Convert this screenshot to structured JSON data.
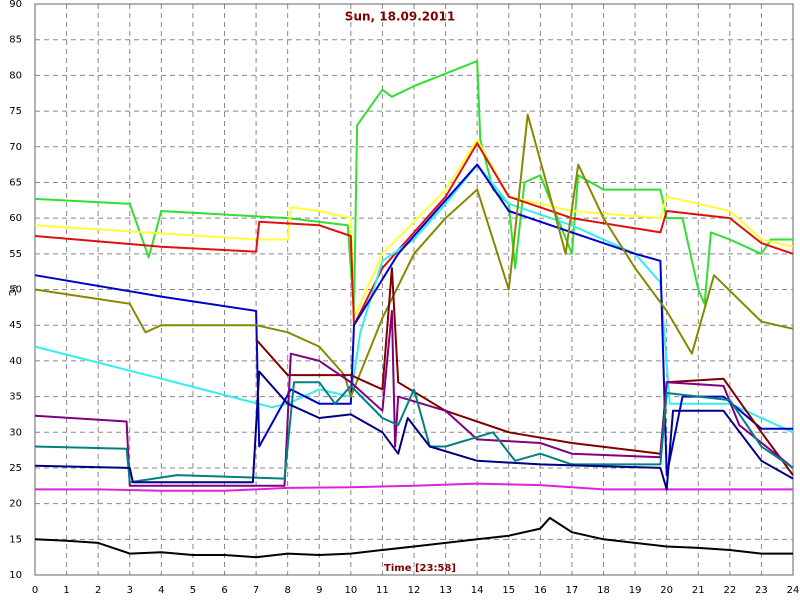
{
  "chart_data": {
    "type": "line",
    "title": "Sun, 18.09.2011",
    "xlabel": "Time [23:58]",
    "ylabel": "°C",
    "xlim": [
      0,
      24
    ],
    "ylim": [
      10,
      90
    ],
    "xticks": [
      0,
      1,
      2,
      3,
      4,
      5,
      6,
      7,
      8,
      9,
      10,
      11,
      12,
      13,
      14,
      15,
      16,
      17,
      18,
      19,
      20,
      21,
      22,
      23,
      24
    ],
    "yticks": [
      10,
      15,
      20,
      25,
      30,
      35,
      40,
      45,
      50,
      55,
      60,
      65,
      70,
      75,
      80,
      85,
      90
    ],
    "grid": true,
    "series": [
      {
        "color": "#000000",
        "x": [
          0,
          1,
          2,
          3,
          4,
          5,
          6,
          7,
          8,
          9,
          10,
          11,
          12,
          13,
          14,
          15,
          16,
          16.3,
          17,
          18,
          19,
          20,
          21,
          22,
          23,
          24
        ],
        "values": [
          15,
          14.8,
          14.5,
          13,
          13.2,
          12.8,
          12.8,
          12.5,
          13,
          12.8,
          13,
          13.5,
          14,
          14.5,
          15,
          15.5,
          16.5,
          18,
          16,
          15,
          14.5,
          14,
          13.8,
          13.5,
          13,
          13
        ]
      },
      {
        "color": "#dd22dd",
        "x": [
          0,
          2,
          4,
          6,
          8,
          10,
          12,
          14,
          16,
          18,
          20,
          22,
          24
        ],
        "values": [
          22,
          22,
          21.8,
          21.8,
          22.2,
          22.3,
          22.5,
          22.8,
          22.6,
          22,
          22,
          22,
          22
        ]
      },
      {
        "color": "#33dd33",
        "x": [
          0,
          3,
          3.6,
          4,
          8,
          9.9,
          10.1,
          10.2,
          11,
          11.3,
          12,
          14,
          14.1,
          14.5,
          15,
          15.2,
          15.5,
          16,
          17,
          17.2,
          18,
          19.8,
          20,
          20.5,
          21,
          21.2,
          21.4,
          22,
          23,
          23.3,
          24
        ],
        "values": [
          62.7,
          62,
          54.5,
          61,
          60,
          59,
          47,
          73,
          78,
          77,
          78.5,
          82,
          71,
          64,
          62,
          53,
          65,
          66,
          55,
          66,
          64,
          64,
          60,
          60,
          50,
          48,
          58,
          57,
          55,
          57,
          57
        ]
      },
      {
        "color": "#ffff33",
        "x": [
          0,
          7,
          8,
          8.1,
          9,
          10,
          10.1,
          11,
          13,
          14,
          15,
          17,
          19.8,
          20,
          22,
          23,
          24
        ],
        "values": [
          59,
          57,
          57,
          61.5,
          61,
          60,
          46,
          55,
          64,
          71,
          63,
          61,
          60,
          63,
          61,
          57,
          56
        ]
      },
      {
        "color": "#dd1111",
        "x": [
          0,
          4,
          7,
          7.1,
          9,
          10,
          10.1,
          11,
          12,
          13,
          14,
          15,
          17,
          19.8,
          20,
          22,
          23,
          24
        ],
        "values": [
          57.5,
          56,
          55.3,
          59.5,
          59,
          57.5,
          45,
          53,
          58,
          63,
          70.5,
          63,
          60,
          58,
          61,
          60,
          56.5,
          55
        ]
      },
      {
        "color": "#33eeee",
        "x": [
          0,
          4,
          7.5,
          8,
          9,
          10,
          10.3,
          11,
          12,
          13,
          14,
          15,
          17,
          19,
          19.8,
          20.1,
          21.5,
          22,
          23,
          24
        ],
        "values": [
          42,
          37.5,
          33.5,
          34,
          36,
          35,
          44,
          54,
          57,
          62,
          67.5,
          62,
          59,
          55,
          51,
          34,
          34,
          34,
          32,
          30
        ]
      },
      {
        "color": "#0000cc",
        "x": [
          0,
          4,
          7,
          7.1,
          8.1,
          9,
          10,
          10.1,
          11.5,
          12.5,
          14,
          15,
          17,
          19,
          19.8,
          20,
          20.5,
          21.8,
          23,
          24
        ],
        "values": [
          52,
          49,
          47,
          28,
          36,
          34,
          34,
          45,
          55,
          60,
          67.5,
          61,
          58,
          55,
          54,
          24,
          35,
          35,
          30.5,
          30.5
        ]
      },
      {
        "color": "#888800",
        "x": [
          0,
          3,
          3.5,
          4,
          7,
          8,
          9,
          9.8,
          10,
          11,
          12,
          13,
          14,
          14.5,
          15,
          15.6,
          16.5,
          16.8,
          17.2,
          18,
          19,
          20,
          20.8,
          21.5,
          23,
          24
        ],
        "values": [
          50,
          48,
          44,
          45,
          45,
          44,
          42,
          38,
          35,
          46,
          55,
          60,
          64,
          57,
          50,
          74.5,
          60,
          55,
          67.5,
          60,
          53,
          47,
          41,
          52,
          45.5,
          44.5
        ]
      },
      {
        "color": "#800000",
        "x": [
          7,
          8,
          10,
          10.5,
          11,
          11.3,
          11.5,
          13,
          15,
          17,
          19.8,
          20,
          21.8,
          23,
          24
        ],
        "values": [
          43,
          38,
          38,
          37,
          36,
          53,
          37,
          33,
          30,
          28.5,
          27,
          37,
          37.5,
          30,
          24
        ]
      },
      {
        "color": "#800080",
        "x": [
          0,
          2.9,
          3,
          7.9,
          8.1,
          9,
          10,
          11,
          11.3,
          11.4,
          11.5,
          13,
          14,
          16,
          17,
          19.8,
          20,
          21.8,
          22.3,
          24
        ],
        "values": [
          32.3,
          31.5,
          22.5,
          22.5,
          41,
          40,
          37,
          33,
          47,
          28,
          35,
          33,
          29,
          28.5,
          27,
          26.5,
          37,
          36.5,
          31,
          25
        ]
      },
      {
        "color": "#008080",
        "x": [
          0,
          2.9,
          3,
          4.5,
          7.9,
          8.2,
          9,
          9.5,
          10,
          11,
          11.5,
          12,
          12.5,
          13,
          14.5,
          15.2,
          16,
          17,
          19.8,
          20,
          22,
          23,
          24
        ],
        "values": [
          28,
          27.7,
          23,
          24,
          23.5,
          37,
          37,
          34,
          36.5,
          32,
          31,
          36,
          28,
          28,
          30,
          26,
          27,
          25.5,
          25.5,
          35.5,
          34.5,
          28,
          25
        ]
      },
      {
        "color": "#000080",
        "x": [
          0,
          3,
          3.1,
          6.9,
          7.1,
          8,
          9,
          10,
          11,
          11.5,
          11.8,
          12.5,
          14,
          16,
          19.8,
          20,
          20.2,
          21.8,
          23,
          24
        ],
        "values": [
          25.3,
          25,
          23,
          23,
          38.5,
          34,
          32,
          32.5,
          30,
          27,
          32,
          28,
          26,
          25.5,
          25,
          22,
          33,
          33,
          26,
          23.5
        ]
      }
    ]
  }
}
